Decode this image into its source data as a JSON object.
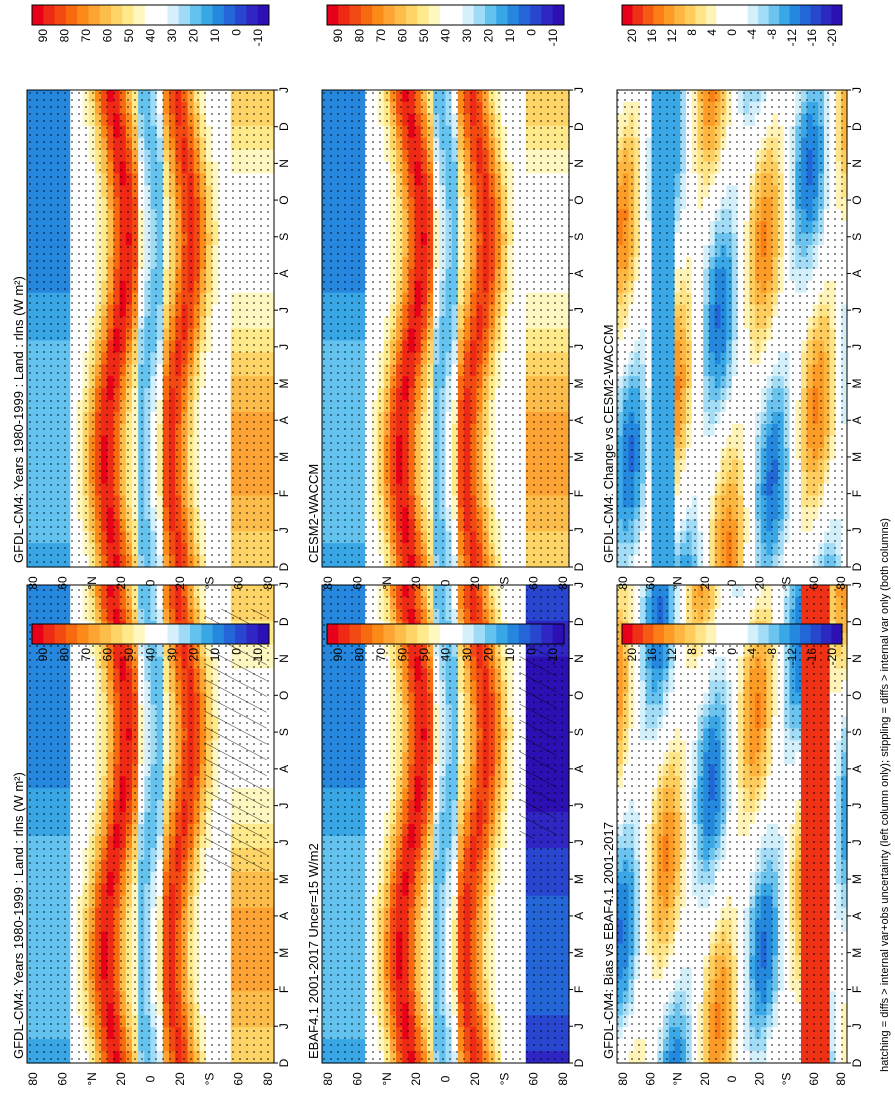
{
  "figure": {
    "footnote": "hatching = diffs > internal var+obs uncertainty (left column only); stippling = diffs > internal var only (both columns)",
    "orientation_note": "page rotated 90 degrees clockwise; latitude along horizontal page axis, month along vertical page axis"
  },
  "chart_data": [
    {
      "id": "model-left",
      "type": "heatmap",
      "title": "GFDL-CM4: Years 1980-1999 : Land : rlns (W m²)",
      "xlabel": "month",
      "ylabel": "latitude",
      "months": [
        "D",
        "J",
        "F",
        "M",
        "A",
        "M",
        "J",
        "J",
        "A",
        "S",
        "O",
        "N",
        "D",
        "J"
      ],
      "lat_ticks": [
        "80",
        "60",
        "°N",
        "20",
        "0",
        "20",
        "°S",
        "60",
        "80"
      ],
      "colorbar_ticks": [
        "90",
        "80",
        "70",
        "60",
        "50",
        "40",
        "30",
        "20",
        "10",
        "0",
        "-10"
      ],
      "values_range": [
        -15,
        100
      ],
      "palette": "abs"
    },
    {
      "id": "obs-left",
      "type": "heatmap",
      "title": "EBAF4.1 2001-2017 Uncer=15 W/m2",
      "xlabel": "month",
      "ylabel": "latitude",
      "months": [
        "D",
        "J",
        "F",
        "M",
        "A",
        "M",
        "J",
        "J",
        "A",
        "S",
        "O",
        "N",
        "D",
        "J"
      ],
      "lat_ticks": [
        "80",
        "60",
        "°N",
        "20",
        "0",
        "20",
        "°S",
        "60",
        "80"
      ],
      "colorbar_ticks": [
        "90",
        "80",
        "70",
        "60",
        "50",
        "40",
        "30",
        "20",
        "10",
        "0",
        "-10"
      ],
      "values_range": [
        -15,
        100
      ],
      "palette": "abs"
    },
    {
      "id": "bias-left",
      "type": "heatmap",
      "title": "GFDL-CM4: Bias vs EBAF4.1 2001-2017",
      "xlabel": "month",
      "ylabel": "latitude",
      "months": [
        "D",
        "J",
        "F",
        "M",
        "A",
        "M",
        "J",
        "J",
        "A",
        "S",
        "O",
        "N",
        "D",
        "J"
      ],
      "lat_ticks": [
        "80",
        "60",
        "°N",
        "20",
        "0",
        "20",
        "°S",
        "60",
        "80"
      ],
      "colorbar_ticks": [
        "20",
        "16",
        "12",
        "8",
        "4",
        "0",
        "-4",
        "-8",
        "-12",
        "-16",
        "-20"
      ],
      "values_range": [
        -22,
        22
      ],
      "palette": "diff"
    },
    {
      "id": "model-right",
      "type": "heatmap",
      "title": "GFDL-CM4: Years 1980-1999 : Land : rlns (W m²)",
      "xlabel": "month",
      "ylabel": "latitude",
      "months": [
        "D",
        "J",
        "F",
        "M",
        "A",
        "M",
        "J",
        "J",
        "A",
        "S",
        "O",
        "N",
        "D",
        "J"
      ],
      "lat_ticks": [
        "80",
        "60",
        "°N",
        "20",
        "0",
        "20",
        "°S",
        "60",
        "80"
      ],
      "colorbar_ticks": [
        "90",
        "80",
        "70",
        "60",
        "50",
        "40",
        "30",
        "20",
        "10",
        "0",
        "-10"
      ],
      "values_range": [
        -15,
        100
      ],
      "palette": "abs"
    },
    {
      "id": "ref-right",
      "type": "heatmap",
      "title": "CESM2-WACCM",
      "xlabel": "month",
      "ylabel": "latitude",
      "months": [
        "D",
        "J",
        "F",
        "M",
        "A",
        "M",
        "J",
        "J",
        "A",
        "S",
        "O",
        "N",
        "D",
        "J"
      ],
      "lat_ticks": [
        "80",
        "60",
        "°N",
        "20",
        "0",
        "20",
        "°S",
        "60",
        "80"
      ],
      "colorbar_ticks": [
        "90",
        "80",
        "70",
        "60",
        "50",
        "40",
        "30",
        "20",
        "10",
        "0",
        "-10"
      ],
      "values_range": [
        -15,
        100
      ],
      "palette": "abs"
    },
    {
      "id": "change-right",
      "type": "heatmap",
      "title": "GFDL-CM4: Change vs CESM2-WACCM",
      "xlabel": "month",
      "ylabel": "latitude",
      "months": [
        "D",
        "J",
        "F",
        "M",
        "A",
        "M",
        "J",
        "J",
        "A",
        "S",
        "O",
        "N",
        "D",
        "J"
      ],
      "lat_ticks": [
        "80",
        "60",
        "°N",
        "20",
        "0",
        "20",
        "°S",
        "60",
        "80"
      ],
      "colorbar_ticks": [
        "20",
        "16",
        "12",
        "8",
        "4",
        "0",
        "-4",
        "-8",
        "-12",
        "-16",
        "-20"
      ],
      "values_range": [
        -22,
        22
      ],
      "palette": "diff"
    }
  ],
  "palettes": {
    "abs": [
      "#e8001a",
      "#ee2a16",
      "#f24a12",
      "#f76a10",
      "#fb8a18",
      "#fda434",
      "#fdbd4a",
      "#fed467",
      "#feea8a",
      "#fff7c0",
      "#ffffff",
      "#ffffff",
      "#d6f0fb",
      "#9fdaf6",
      "#64c2ef",
      "#39a7e6",
      "#2687df",
      "#2466d8",
      "#2846cf",
      "#2f26c4",
      "#2d10b4"
    ],
    "diff": [
      "#e8001a",
      "#ef3215",
      "#f55a12",
      "#f97e15",
      "#fc9c27",
      "#fdb640",
      "#fecd5d",
      "#fee487",
      "#fff3b8",
      "#ffffff",
      "#ffffff",
      "#ffffff",
      "#d3effa",
      "#a2dcf6",
      "#6bc4ef",
      "#3aa8e6",
      "#2488df",
      "#2267d7",
      "#2748ce",
      "#2e28c2",
      "#2c10b2"
    ],
    "stipple": "#000000"
  }
}
